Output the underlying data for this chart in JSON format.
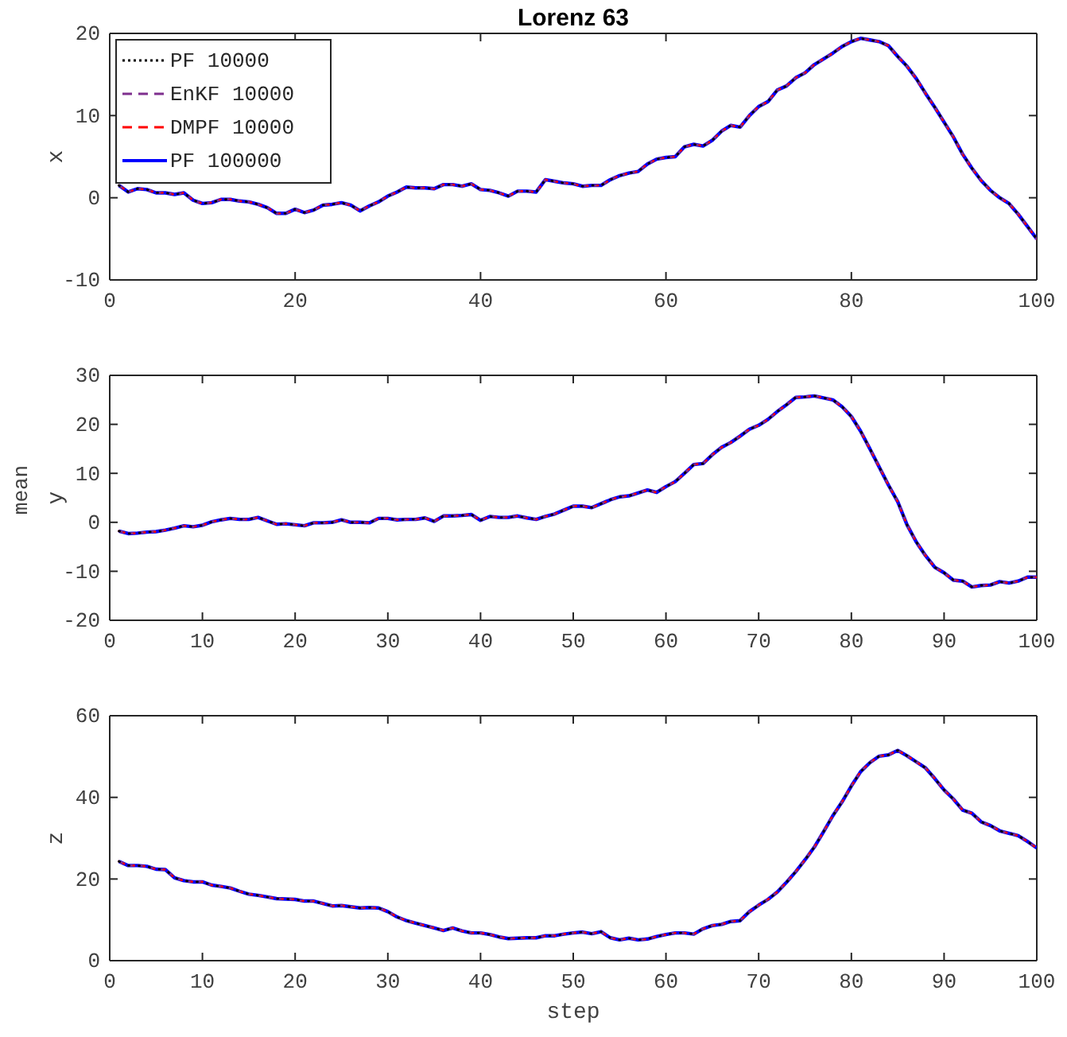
{
  "chart_data": [
    {
      "type": "line",
      "title": "Lorenz 63",
      "ylabel": "x",
      "xlim": [
        0,
        100
      ],
      "xticks": [
        0,
        20,
        40,
        60,
        80,
        100
      ],
      "ylim": [
        -10,
        20
      ],
      "yticks": [
        -10,
        0,
        10,
        20
      ],
      "legend": "top left",
      "grid": false,
      "marker": "none",
      "x": [
        1,
        2,
        3,
        4,
        5,
        6,
        7,
        8,
        9,
        10,
        11,
        12,
        13,
        14,
        15,
        16,
        17,
        18,
        19,
        20,
        21,
        22,
        23,
        24,
        25,
        26,
        27,
        28,
        29,
        30,
        31,
        32,
        33,
        34,
        35,
        36,
        37,
        38,
        39,
        40,
        41,
        42,
        43,
        44,
        45,
        46,
        47,
        48,
        49,
        50,
        51,
        52,
        53,
        54,
        55,
        56,
        57,
        58,
        59,
        60,
        61,
        62,
        63,
        64,
        65,
        66,
        67,
        68,
        69,
        70,
        71,
        72,
        73,
        74,
        75,
        76,
        77,
        78,
        79,
        80,
        81,
        82,
        83,
        84,
        85,
        86,
        87,
        88,
        89,
        90,
        91,
        92,
        93,
        94,
        95,
        96,
        97,
        98,
        99,
        100
      ],
      "series": [
        {
          "name": "PF 10000",
          "color": "#000000",
          "line_style": "dotted",
          "values": [
            1.5,
            0.7,
            1.1,
            1.0,
            0.6,
            0.6,
            0.4,
            0.6,
            -0.3,
            -0.7,
            -0.6,
            -0.2,
            -0.2,
            -0.4,
            -0.5,
            -0.8,
            -1.2,
            -1.9,
            -1.9,
            -1.4,
            -1.8,
            -1.5,
            -0.9,
            -0.8,
            -0.6,
            -0.9,
            -1.6,
            -1.0,
            -0.5,
            0.2,
            0.7,
            1.3,
            1.2,
            1.2,
            1.1,
            1.6,
            1.6,
            1.4,
            1.7,
            1.0,
            0.9,
            0.6,
            0.2,
            0.8,
            0.8,
            0.7,
            2.2,
            2.0,
            1.8,
            1.7,
            1.4,
            1.5,
            1.5,
            2.2,
            2.7,
            3.0,
            3.2,
            4.1,
            4.7,
            4.9,
            5.0,
            6.2,
            6.5,
            6.3,
            7.0,
            8.1,
            8.8,
            8.6,
            10.0,
            11.1,
            11.7,
            13.1,
            13.6,
            14.6,
            15.2,
            16.2,
            16.9,
            17.6,
            18.4,
            19.0,
            19.4,
            19.2,
            19.0,
            18.5,
            17.2,
            16.0,
            14.5,
            12.7,
            11.0,
            9.2,
            7.4,
            5.3,
            3.6,
            2.1,
            0.9,
            0.0,
            -0.7,
            -2.0,
            -3.5,
            -5.0
          ]
        },
        {
          "name": "EnKF 10000",
          "color": "#7e2f8e",
          "line_style": "dashed",
          "values": [
            1.5,
            0.7,
            1.1,
            1.0,
            0.6,
            0.6,
            0.4,
            0.6,
            -0.3,
            -0.7,
            -0.6,
            -0.2,
            -0.2,
            -0.4,
            -0.5,
            -0.8,
            -1.2,
            -1.9,
            -1.9,
            -1.4,
            -1.8,
            -1.5,
            -0.9,
            -0.8,
            -0.6,
            -0.9,
            -1.6,
            -1.0,
            -0.5,
            0.2,
            0.7,
            1.3,
            1.2,
            1.2,
            1.1,
            1.6,
            1.6,
            1.4,
            1.7,
            1.0,
            0.9,
            0.6,
            0.2,
            0.8,
            0.8,
            0.7,
            2.2,
            2.0,
            1.8,
            1.7,
            1.4,
            1.5,
            1.5,
            2.2,
            2.7,
            3.0,
            3.2,
            4.1,
            4.7,
            4.9,
            5.0,
            6.2,
            6.5,
            6.3,
            7.0,
            8.1,
            8.8,
            8.6,
            10.0,
            11.1,
            11.7,
            13.1,
            13.6,
            14.6,
            15.2,
            16.2,
            16.9,
            17.6,
            18.4,
            19.0,
            19.4,
            19.2,
            19.0,
            18.5,
            17.2,
            16.0,
            14.5,
            12.7,
            11.0,
            9.2,
            7.4,
            5.3,
            3.6,
            2.1,
            0.9,
            0.0,
            -0.7,
            -2.0,
            -3.5,
            -5.0
          ]
        },
        {
          "name": "DMPF 10000",
          "color": "#ff0000",
          "line_style": "dashed",
          "values": [
            1.5,
            0.7,
            1.1,
            1.0,
            0.6,
            0.6,
            0.4,
            0.6,
            -0.3,
            -0.7,
            -0.6,
            -0.2,
            -0.2,
            -0.4,
            -0.5,
            -0.8,
            -1.2,
            -1.9,
            -1.9,
            -1.4,
            -1.8,
            -1.5,
            -0.9,
            -0.8,
            -0.6,
            -0.9,
            -1.6,
            -1.0,
            -0.5,
            0.2,
            0.7,
            1.3,
            1.2,
            1.2,
            1.1,
            1.6,
            1.6,
            1.4,
            1.7,
            1.0,
            0.9,
            0.6,
            0.2,
            0.8,
            0.8,
            0.7,
            2.2,
            2.0,
            1.8,
            1.7,
            1.4,
            1.5,
            1.5,
            2.2,
            2.7,
            3.0,
            3.2,
            4.1,
            4.7,
            4.9,
            5.0,
            6.2,
            6.5,
            6.3,
            7.0,
            8.1,
            8.8,
            8.6,
            10.0,
            11.1,
            11.7,
            13.1,
            13.6,
            14.6,
            15.2,
            16.2,
            16.9,
            17.6,
            18.4,
            19.0,
            19.4,
            19.2,
            19.0,
            18.5,
            17.2,
            16.0,
            14.5,
            12.7,
            11.0,
            9.2,
            7.4,
            5.3,
            3.6,
            2.1,
            0.9,
            0.0,
            -0.7,
            -2.0,
            -3.5,
            -5.0
          ]
        },
        {
          "name": "PF 100000",
          "color": "#0000ff",
          "line_style": "solid",
          "values": [
            1.5,
            0.7,
            1.1,
            1.0,
            0.6,
            0.6,
            0.4,
            0.6,
            -0.3,
            -0.7,
            -0.6,
            -0.2,
            -0.2,
            -0.4,
            -0.5,
            -0.8,
            -1.2,
            -1.9,
            -1.9,
            -1.4,
            -1.8,
            -1.5,
            -0.9,
            -0.8,
            -0.6,
            -0.9,
            -1.6,
            -1.0,
            -0.5,
            0.2,
            0.7,
            1.3,
            1.2,
            1.2,
            1.1,
            1.6,
            1.6,
            1.4,
            1.7,
            1.0,
            0.9,
            0.6,
            0.2,
            0.8,
            0.8,
            0.7,
            2.2,
            2.0,
            1.8,
            1.7,
            1.4,
            1.5,
            1.5,
            2.2,
            2.7,
            3.0,
            3.2,
            4.1,
            4.7,
            4.9,
            5.0,
            6.2,
            6.5,
            6.3,
            7.0,
            8.1,
            8.8,
            8.6,
            10.0,
            11.1,
            11.7,
            13.1,
            13.6,
            14.6,
            15.2,
            16.2,
            16.9,
            17.6,
            18.4,
            19.0,
            19.4,
            19.2,
            19.0,
            18.5,
            17.2,
            16.0,
            14.5,
            12.7,
            11.0,
            9.2,
            7.4,
            5.3,
            3.6,
            2.1,
            0.9,
            0.0,
            -0.7,
            -2.0,
            -3.5,
            -5.0
          ]
        }
      ]
    },
    {
      "type": "line",
      "ylabel": "y",
      "annotations": [
        "mean"
      ],
      "xlim": [
        0,
        100
      ],
      "xticks": [
        0,
        10,
        20,
        30,
        40,
        50,
        60,
        70,
        80,
        90,
        100
      ],
      "ylim": [
        -20,
        30
      ],
      "yticks": [
        -20,
        -10,
        0,
        10,
        20,
        30
      ],
      "grid": false,
      "marker": "none",
      "x": [
        1,
        2,
        3,
        4,
        5,
        6,
        7,
        8,
        9,
        10,
        11,
        12,
        13,
        14,
        15,
        16,
        17,
        18,
        19,
        20,
        21,
        22,
        23,
        24,
        25,
        26,
        27,
        28,
        29,
        30,
        31,
        32,
        33,
        34,
        35,
        36,
        37,
        38,
        39,
        40,
        41,
        42,
        43,
        44,
        45,
        46,
        47,
        48,
        49,
        50,
        51,
        52,
        53,
        54,
        55,
        56,
        57,
        58,
        59,
        60,
        61,
        62,
        63,
        64,
        65,
        66,
        67,
        68,
        69,
        70,
        71,
        72,
        73,
        74,
        75,
        76,
        77,
        78,
        79,
        80,
        81,
        82,
        83,
        84,
        85,
        86,
        87,
        88,
        89,
        90,
        91,
        92,
        93,
        94,
        95,
        96,
        97,
        98,
        99,
        100
      ],
      "series": [
        {
          "color": "#000000",
          "line_style": "dotted",
          "values": [
            -1.8,
            -2.3,
            -2.2,
            -2.0,
            -1.9,
            -1.6,
            -1.2,
            -0.7,
            -0.9,
            -0.6,
            0.1,
            0.5,
            0.8,
            0.6,
            0.6,
            1.0,
            0.3,
            -0.4,
            -0.3,
            -0.5,
            -0.7,
            -0.1,
            -0.1,
            0.0,
            0.5,
            0.0,
            0.0,
            -0.1,
            0.8,
            0.8,
            0.5,
            0.6,
            0.6,
            0.9,
            0.2,
            1.3,
            1.3,
            1.4,
            1.6,
            0.4,
            1.2,
            1.0,
            1.0,
            1.3,
            0.9,
            0.6,
            1.2,
            1.7,
            2.5,
            3.3,
            3.3,
            3.0,
            3.8,
            4.6,
            5.2,
            5.4,
            6.0,
            6.6,
            6.1,
            7.3,
            8.3,
            10.0,
            11.8,
            12.0,
            13.8,
            15.3,
            16.3,
            17.6,
            19.0,
            19.8,
            21.0,
            22.6,
            24.0,
            25.5,
            25.6,
            25.8,
            25.4,
            25.0,
            23.6,
            21.6,
            18.6,
            15.0,
            11.3,
            7.6,
            4.2,
            -0.5,
            -4.0,
            -6.8,
            -9.2,
            -10.3,
            -11.8,
            -12.0,
            -13.2,
            -12.9,
            -12.8,
            -12.1,
            -12.4,
            -12.0,
            -11.2,
            -11.2
          ]
        },
        {
          "color": "#7e2f8e",
          "line_style": "dashed",
          "values": [
            -1.8,
            -2.3,
            -2.2,
            -2.0,
            -1.9,
            -1.6,
            -1.2,
            -0.7,
            -0.9,
            -0.6,
            0.1,
            0.5,
            0.8,
            0.6,
            0.6,
            1.0,
            0.3,
            -0.4,
            -0.3,
            -0.5,
            -0.7,
            -0.1,
            -0.1,
            0.0,
            0.5,
            0.0,
            0.0,
            -0.1,
            0.8,
            0.8,
            0.5,
            0.6,
            0.6,
            0.9,
            0.2,
            1.3,
            1.3,
            1.4,
            1.6,
            0.4,
            1.2,
            1.0,
            1.0,
            1.3,
            0.9,
            0.6,
            1.2,
            1.7,
            2.5,
            3.3,
            3.3,
            3.0,
            3.8,
            4.6,
            5.2,
            5.4,
            6.0,
            6.6,
            6.1,
            7.3,
            8.3,
            10.0,
            11.8,
            12.0,
            13.8,
            15.3,
            16.3,
            17.6,
            19.0,
            19.8,
            21.0,
            22.6,
            24.0,
            25.5,
            25.6,
            25.8,
            25.4,
            25.0,
            23.6,
            21.6,
            18.6,
            15.0,
            11.3,
            7.6,
            4.2,
            -0.5,
            -4.0,
            -6.8,
            -9.2,
            -10.3,
            -11.8,
            -12.0,
            -13.2,
            -12.9,
            -12.8,
            -12.1,
            -12.4,
            -12.0,
            -11.2,
            -11.2
          ]
        },
        {
          "color": "#ff0000",
          "line_style": "dashed",
          "values": [
            -1.8,
            -2.3,
            -2.2,
            -2.0,
            -1.9,
            -1.6,
            -1.2,
            -0.7,
            -0.9,
            -0.6,
            0.1,
            0.5,
            0.8,
            0.6,
            0.6,
            1.0,
            0.3,
            -0.4,
            -0.3,
            -0.5,
            -0.7,
            -0.1,
            -0.1,
            0.0,
            0.5,
            0.0,
            0.0,
            -0.1,
            0.8,
            0.8,
            0.5,
            0.6,
            0.6,
            0.9,
            0.2,
            1.3,
            1.3,
            1.4,
            1.6,
            0.4,
            1.2,
            1.0,
            1.0,
            1.3,
            0.9,
            0.6,
            1.2,
            1.7,
            2.5,
            3.3,
            3.3,
            3.0,
            3.8,
            4.6,
            5.2,
            5.4,
            6.0,
            6.6,
            6.1,
            7.3,
            8.3,
            10.0,
            11.8,
            12.0,
            13.8,
            15.3,
            16.3,
            17.6,
            19.0,
            19.8,
            21.0,
            22.6,
            24.0,
            25.5,
            25.6,
            25.8,
            25.4,
            25.0,
            23.6,
            21.6,
            18.6,
            15.0,
            11.3,
            7.6,
            4.2,
            -0.5,
            -4.0,
            -6.8,
            -9.2,
            -10.3,
            -11.8,
            -12.0,
            -13.2,
            -12.9,
            -12.8,
            -12.1,
            -12.4,
            -12.0,
            -11.2,
            -11.2
          ]
        },
        {
          "color": "#0000ff",
          "line_style": "solid",
          "values": [
            -1.8,
            -2.3,
            -2.2,
            -2.0,
            -1.9,
            -1.6,
            -1.2,
            -0.7,
            -0.9,
            -0.6,
            0.1,
            0.5,
            0.8,
            0.6,
            0.6,
            1.0,
            0.3,
            -0.4,
            -0.3,
            -0.5,
            -0.7,
            -0.1,
            -0.1,
            0.0,
            0.5,
            0.0,
            0.0,
            -0.1,
            0.8,
            0.8,
            0.5,
            0.6,
            0.6,
            0.9,
            0.2,
            1.3,
            1.3,
            1.4,
            1.6,
            0.4,
            1.2,
            1.0,
            1.0,
            1.3,
            0.9,
            0.6,
            1.2,
            1.7,
            2.5,
            3.3,
            3.3,
            3.0,
            3.8,
            4.6,
            5.2,
            5.4,
            6.0,
            6.6,
            6.1,
            7.3,
            8.3,
            10.0,
            11.8,
            12.0,
            13.8,
            15.3,
            16.3,
            17.6,
            19.0,
            19.8,
            21.0,
            22.6,
            24.0,
            25.5,
            25.6,
            25.8,
            25.4,
            25.0,
            23.6,
            21.6,
            18.6,
            15.0,
            11.3,
            7.6,
            4.2,
            -0.5,
            -4.0,
            -6.8,
            -9.2,
            -10.3,
            -11.8,
            -12.0,
            -13.2,
            -12.9,
            -12.8,
            -12.1,
            -12.4,
            -12.0,
            -11.2,
            -11.2
          ]
        }
      ]
    },
    {
      "type": "line",
      "ylabel": "z",
      "xlabel": "step",
      "xlim": [
        0,
        100
      ],
      "xticks": [
        0,
        10,
        20,
        30,
        40,
        50,
        60,
        70,
        80,
        90,
        100
      ],
      "ylim": [
        0,
        60
      ],
      "yticks": [
        0,
        20,
        40,
        60
      ],
      "grid": false,
      "marker": "none",
      "x": [
        1,
        2,
        3,
        4,
        5,
        6,
        7,
        8,
        9,
        10,
        11,
        12,
        13,
        14,
        15,
        16,
        17,
        18,
        19,
        20,
        21,
        22,
        23,
        24,
        25,
        26,
        27,
        28,
        29,
        30,
        31,
        32,
        33,
        34,
        35,
        36,
        37,
        38,
        39,
        40,
        41,
        42,
        43,
        44,
        45,
        46,
        47,
        48,
        49,
        50,
        51,
        52,
        53,
        54,
        55,
        56,
        57,
        58,
        59,
        60,
        61,
        62,
        63,
        64,
        65,
        66,
        67,
        68,
        69,
        70,
        71,
        72,
        73,
        74,
        75,
        76,
        77,
        78,
        79,
        80,
        81,
        82,
        83,
        84,
        85,
        86,
        87,
        88,
        89,
        90,
        91,
        92,
        93,
        94,
        95,
        96,
        97,
        98,
        99,
        100
      ],
      "series": [
        {
          "color": "#000000",
          "line_style": "dotted",
          "values": [
            24.3,
            23.3,
            23.3,
            23.1,
            22.4,
            22.3,
            20.3,
            19.6,
            19.3,
            19.3,
            18.5,
            18.2,
            17.8,
            17.0,
            16.3,
            16.0,
            15.6,
            15.2,
            15.1,
            15.0,
            14.6,
            14.6,
            14.0,
            13.4,
            13.5,
            13.2,
            12.9,
            13.0,
            12.9,
            12.0,
            10.7,
            9.8,
            9.2,
            8.6,
            8.0,
            7.4,
            8.0,
            7.3,
            6.8,
            6.8,
            6.4,
            5.8,
            5.4,
            5.5,
            5.6,
            5.6,
            6.1,
            6.1,
            6.5,
            6.8,
            7.0,
            6.6,
            7.1,
            5.6,
            5.1,
            5.5,
            5.1,
            5.3,
            5.9,
            6.4,
            6.8,
            6.8,
            6.5,
            7.8,
            8.6,
            8.9,
            9.6,
            9.8,
            12.0,
            13.6,
            15.0,
            16.8,
            19.2,
            21.8,
            24.7,
            27.8,
            31.6,
            35.5,
            38.9,
            42.8,
            46.3,
            48.5,
            50.1,
            50.4,
            51.5,
            50.2,
            48.7,
            47.2,
            44.6,
            41.8,
            39.6,
            36.9,
            36.1,
            34.0,
            33.1,
            31.8,
            31.2,
            30.6,
            29.2,
            27.6
          ]
        },
        {
          "color": "#7e2f8e",
          "line_style": "dashed",
          "values": [
            24.3,
            23.3,
            23.3,
            23.1,
            22.4,
            22.3,
            20.3,
            19.6,
            19.3,
            19.3,
            18.5,
            18.2,
            17.8,
            17.0,
            16.3,
            16.0,
            15.6,
            15.2,
            15.1,
            15.0,
            14.6,
            14.6,
            14.0,
            13.4,
            13.5,
            13.2,
            12.9,
            13.0,
            12.9,
            12.0,
            10.7,
            9.8,
            9.2,
            8.6,
            8.0,
            7.4,
            8.0,
            7.3,
            6.8,
            6.8,
            6.4,
            5.8,
            5.4,
            5.5,
            5.6,
            5.6,
            6.1,
            6.1,
            6.5,
            6.8,
            7.0,
            6.6,
            7.1,
            5.6,
            5.1,
            5.5,
            5.1,
            5.3,
            5.9,
            6.4,
            6.8,
            6.8,
            6.5,
            7.8,
            8.6,
            8.9,
            9.6,
            9.8,
            12.0,
            13.6,
            15.0,
            16.8,
            19.2,
            21.8,
            24.7,
            27.8,
            31.6,
            35.5,
            38.9,
            42.8,
            46.3,
            48.5,
            50.1,
            50.4,
            51.5,
            50.2,
            48.7,
            47.2,
            44.6,
            41.8,
            39.6,
            36.9,
            36.1,
            34.0,
            33.1,
            31.8,
            31.2,
            30.6,
            29.2,
            27.6
          ]
        },
        {
          "color": "#ff0000",
          "line_style": "dashed",
          "values": [
            24.3,
            23.3,
            23.3,
            23.1,
            22.4,
            22.3,
            20.3,
            19.6,
            19.3,
            19.3,
            18.5,
            18.2,
            17.8,
            17.0,
            16.3,
            16.0,
            15.6,
            15.2,
            15.1,
            15.0,
            14.6,
            14.6,
            14.0,
            13.4,
            13.5,
            13.2,
            12.9,
            13.0,
            12.9,
            12.0,
            10.7,
            9.8,
            9.2,
            8.6,
            8.0,
            7.4,
            8.0,
            7.3,
            6.8,
            6.8,
            6.4,
            5.8,
            5.4,
            5.5,
            5.6,
            5.6,
            6.1,
            6.1,
            6.5,
            6.8,
            7.0,
            6.6,
            7.1,
            5.6,
            5.1,
            5.5,
            5.1,
            5.3,
            5.9,
            6.4,
            6.8,
            6.8,
            6.5,
            7.8,
            8.6,
            8.9,
            9.6,
            9.8,
            12.0,
            13.6,
            15.0,
            16.8,
            19.2,
            21.8,
            24.7,
            27.8,
            31.6,
            35.5,
            38.9,
            42.8,
            46.3,
            48.5,
            50.1,
            50.4,
            51.5,
            50.2,
            48.7,
            47.2,
            44.6,
            41.8,
            39.6,
            36.9,
            36.1,
            34.0,
            33.1,
            31.8,
            31.2,
            30.6,
            29.2,
            27.6
          ]
        },
        {
          "color": "#0000ff",
          "line_style": "solid",
          "values": [
            24.3,
            23.3,
            23.3,
            23.1,
            22.4,
            22.3,
            20.3,
            19.6,
            19.3,
            19.3,
            18.5,
            18.2,
            17.8,
            17.0,
            16.3,
            16.0,
            15.6,
            15.2,
            15.1,
            15.0,
            14.6,
            14.6,
            14.0,
            13.4,
            13.5,
            13.2,
            12.9,
            13.0,
            12.9,
            12.0,
            10.7,
            9.8,
            9.2,
            8.6,
            8.0,
            7.4,
            8.0,
            7.3,
            6.8,
            6.8,
            6.4,
            5.8,
            5.4,
            5.5,
            5.6,
            5.6,
            6.1,
            6.1,
            6.5,
            6.8,
            7.0,
            6.6,
            7.1,
            5.6,
            5.1,
            5.5,
            5.1,
            5.3,
            5.9,
            6.4,
            6.8,
            6.8,
            6.5,
            7.8,
            8.6,
            8.9,
            9.6,
            9.8,
            12.0,
            13.6,
            15.0,
            16.8,
            19.2,
            21.8,
            24.7,
            27.8,
            31.6,
            35.5,
            38.9,
            42.8,
            46.3,
            48.5,
            50.1,
            50.4,
            51.5,
            50.2,
            48.7,
            47.2,
            44.6,
            41.8,
            39.6,
            36.9,
            36.1,
            34.0,
            33.1,
            31.8,
            31.2,
            30.6,
            29.2,
            27.6
          ]
        }
      ]
    }
  ]
}
